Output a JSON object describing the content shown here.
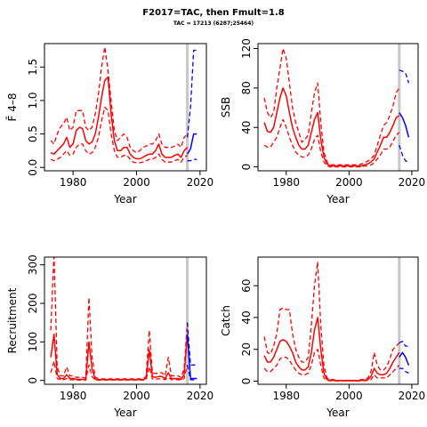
{
  "figure": {
    "title": "F2017=TAC, then Fmult=1.8",
    "subtitle": "TAC = 17213 (6287;25464)"
  },
  "colors": {
    "historical": "#ff0000",
    "forecast": "#0000ff",
    "divider": "#c8c8c8",
    "frame": "#000000"
  },
  "chart_data": [
    {
      "id": "fbar",
      "type": "line",
      "xlabel": "Year",
      "ylabel": "F̄ 4–8",
      "xlim": [
        1971,
        2022
      ],
      "ylim": [
        -0.05,
        1.85
      ],
      "xticks": [
        1980,
        2000,
        2020
      ],
      "yticks": [
        0.0,
        0.5,
        1.0,
        1.5
      ],
      "ytick_labels": [
        "0.0",
        "0.5",
        "1.0",
        "1.5"
      ],
      "divider_year": 2016,
      "historical": {
        "x": [
          1973,
          1974,
          1975,
          1976,
          1977,
          1978,
          1979,
          1980,
          1981,
          1982,
          1983,
          1984,
          1985,
          1986,
          1987,
          1988,
          1989,
          1990,
          1991,
          1992,
          1993,
          1994,
          1995,
          1996,
          1997,
          1998,
          1999,
          2000,
          2001,
          2002,
          2003,
          2004,
          2005,
          2006,
          2007,
          2008,
          2009,
          2010,
          2011,
          2012,
          2013,
          2014,
          2015,
          2016
        ],
        "median": [
          0.22,
          0.2,
          0.25,
          0.3,
          0.35,
          0.45,
          0.3,
          0.35,
          0.55,
          0.6,
          0.58,
          0.4,
          0.35,
          0.38,
          0.5,
          0.75,
          1.05,
          1.3,
          1.35,
          0.8,
          0.4,
          0.25,
          0.25,
          0.3,
          0.3,
          0.2,
          0.15,
          0.13,
          0.13,
          0.15,
          0.18,
          0.2,
          0.2,
          0.25,
          0.35,
          0.2,
          0.15,
          0.15,
          0.15,
          0.18,
          0.2,
          0.15,
          0.25,
          0.3
        ],
        "upper": [
          0.4,
          0.35,
          0.5,
          0.6,
          0.65,
          0.75,
          0.55,
          0.6,
          0.85,
          0.85,
          0.85,
          0.6,
          0.55,
          0.6,
          0.8,
          1.1,
          1.5,
          1.8,
          1.45,
          1.0,
          0.55,
          0.4,
          0.45,
          0.5,
          0.45,
          0.3,
          0.25,
          0.22,
          0.25,
          0.3,
          0.32,
          0.35,
          0.35,
          0.4,
          0.5,
          0.35,
          0.3,
          0.3,
          0.3,
          0.32,
          0.35,
          0.3,
          0.45,
          0.5
        ],
        "lower": [
          0.12,
          0.1,
          0.12,
          0.15,
          0.2,
          0.25,
          0.18,
          0.2,
          0.3,
          0.35,
          0.35,
          0.25,
          0.2,
          0.22,
          0.3,
          0.45,
          0.7,
          0.9,
          0.85,
          0.5,
          0.25,
          0.15,
          0.15,
          0.18,
          0.18,
          0.12,
          0.08,
          0.07,
          0.07,
          0.08,
          0.1,
          0.12,
          0.12,
          0.15,
          0.2,
          0.12,
          0.08,
          0.08,
          0.08,
          0.1,
          0.12,
          0.08,
          0.15,
          0.18
        ]
      },
      "forecast": {
        "x": [
          2016,
          2017,
          2018,
          2019
        ],
        "median": [
          0.2,
          0.28,
          0.5,
          0.5
        ],
        "upper": [
          0.45,
          0.9,
          1.75,
          1.75
        ],
        "lower": [
          0.1,
          0.1,
          0.12,
          0.12
        ]
      }
    },
    {
      "id": "ssb",
      "type": "line",
      "xlabel": "Year",
      "ylabel": "SSB",
      "xlim": [
        1971,
        2022
      ],
      "ylim": [
        -4,
        125
      ],
      "xticks": [
        1980,
        2000,
        2020
      ],
      "yticks": [
        0,
        40,
        80,
        120
      ],
      "ytick_labels": [
        "0",
        "40",
        "80",
        "120"
      ],
      "divider_year": 2016,
      "historical": {
        "x": [
          1973,
          1974,
          1975,
          1976,
          1977,
          1978,
          1979,
          1980,
          1981,
          1982,
          1983,
          1984,
          1985,
          1986,
          1987,
          1988,
          1989,
          1990,
          1991,
          1992,
          1993,
          1994,
          1995,
          1996,
          1997,
          1998,
          1999,
          2000,
          2001,
          2002,
          2003,
          2004,
          2005,
          2006,
          2007,
          2008,
          2009,
          2010,
          2011,
          2012,
          2013,
          2014,
          2015,
          2016
        ],
        "median": [
          45,
          36,
          35,
          40,
          55,
          70,
          80,
          72,
          55,
          40,
          30,
          22,
          18,
          18,
          22,
          35,
          48,
          55,
          28,
          10,
          3,
          1,
          1,
          1,
          1,
          1,
          1,
          1,
          1,
          1,
          1,
          1,
          2,
          3,
          5,
          8,
          15,
          22,
          30,
          30,
          35,
          42,
          50,
          52
        ],
        "upper": [
          70,
          55,
          50,
          55,
          80,
          100,
          120,
          110,
          85,
          60,
          45,
          35,
          25,
          28,
          32,
          55,
          75,
          85,
          45,
          15,
          5,
          2,
          2,
          2,
          2,
          2,
          2,
          2,
          2,
          2,
          2,
          3,
          4,
          6,
          8,
          12,
          22,
          32,
          42,
          45,
          52,
          62,
          75,
          80
        ],
        "lower": [
          22,
          20,
          20,
          25,
          30,
          40,
          48,
          40,
          30,
          22,
          15,
          12,
          10,
          10,
          12,
          18,
          28,
          32,
          15,
          5,
          1,
          0,
          0,
          0,
          0,
          0,
          0,
          0,
          0,
          0,
          0,
          0,
          1,
          1,
          2,
          4,
          8,
          12,
          18,
          18,
          20,
          26,
          32,
          35
        ]
      },
      "forecast": {
        "x": [
          2016,
          2017,
          2018,
          2019
        ],
        "median": [
          55,
          50,
          42,
          30
        ],
        "upper": [
          98,
          97,
          95,
          85
        ],
        "lower": [
          22,
          12,
          6,
          5
        ]
      }
    },
    {
      "id": "recruitment",
      "type": "line",
      "xlabel": "Year",
      "ylabel": "Recruitment",
      "xlim": [
        1971,
        2022
      ],
      "ylim": [
        -10,
        320
      ],
      "xticks": [
        1980,
        2000,
        2020
      ],
      "yticks": [
        0,
        100,
        200,
        300
      ],
      "ytick_labels": [
        "0",
        "100",
        "200",
        "300"
      ],
      "divider_year": 2016,
      "historical": {
        "x": [
          1973,
          1974,
          1975,
          1976,
          1977,
          1978,
          1979,
          1980,
          1981,
          1982,
          1983,
          1984,
          1985,
          1986,
          1987,
          1988,
          1989,
          1990,
          1991,
          1992,
          1993,
          1994,
          1995,
          1996,
          1997,
          1998,
          1999,
          2000,
          2001,
          2002,
          2003,
          2004,
          2005,
          2006,
          2007,
          2008,
          2009,
          2010,
          2011,
          2012,
          2013,
          2014,
          2015,
          2016
        ],
        "median": [
          60,
          120,
          15,
          5,
          5,
          15,
          5,
          5,
          3,
          3,
          3,
          2,
          100,
          30,
          3,
          2,
          2,
          2,
          2,
          2,
          2,
          2,
          2,
          2,
          2,
          2,
          2,
          2,
          2,
          2,
          5,
          80,
          10,
          8,
          10,
          10,
          5,
          20,
          5,
          5,
          5,
          3,
          15,
          120
        ],
        "upper": [
          130,
          330,
          35,
          12,
          12,
          35,
          12,
          12,
          8,
          8,
          8,
          6,
          215,
          60,
          8,
          5,
          4,
          4,
          4,
          4,
          4,
          4,
          4,
          4,
          4,
          4,
          4,
          4,
          4,
          4,
          10,
          130,
          20,
          18,
          20,
          20,
          12,
          60,
          12,
          12,
          12,
          8,
          30,
          150
        ],
        "lower": [
          20,
          50,
          5,
          2,
          2,
          5,
          2,
          2,
          1,
          1,
          1,
          1,
          40,
          10,
          1,
          1,
          1,
          1,
          1,
          1,
          1,
          1,
          1,
          1,
          1,
          1,
          1,
          1,
          1,
          1,
          2,
          35,
          4,
          3,
          4,
          4,
          2,
          8,
          2,
          2,
          2,
          1,
          5,
          40
        ]
      },
      "forecast": {
        "x": [
          2016,
          2017,
          2018,
          2019
        ],
        "median": [
          120,
          5,
          5,
          5
        ],
        "upper": [
          150,
          40,
          40,
          40
        ],
        "lower": [
          40,
          2,
          2,
          2
        ]
      }
    },
    {
      "id": "catch",
      "type": "line",
      "xlabel": "Year",
      "ylabel": "Catch",
      "xlim": [
        1971,
        2022
      ],
      "ylim": [
        -2,
        78
      ],
      "xticks": [
        1980,
        2000,
        2020
      ],
      "yticks": [
        0,
        20,
        40,
        60
      ],
      "ytick_labels": [
        "0",
        "20",
        "40",
        "60"
      ],
      "divider_year": 2016,
      "historical": {
        "x": [
          1973,
          1974,
          1975,
          1976,
          1977,
          1978,
          1979,
          1980,
          1981,
          1982,
          1983,
          1984,
          1985,
          1986,
          1987,
          1988,
          1989,
          1990,
          1991,
          1992,
          1993,
          1994,
          1995,
          1996,
          1997,
          1998,
          1999,
          2000,
          2001,
          2002,
          2003,
          2004,
          2005,
          2006,
          2007,
          2008,
          2009,
          2010,
          2011,
          2012,
          2013,
          2014,
          2015,
          2016
        ],
        "median": [
          16,
          12,
          12,
          15,
          20,
          25,
          26,
          25,
          22,
          18,
          12,
          9,
          7,
          7,
          9,
          18,
          32,
          40,
          20,
          5,
          1,
          0.5,
          0.5,
          0.3,
          0.3,
          0.3,
          0.3,
          0.3,
          0.3,
          0.3,
          0.3,
          0.5,
          0.5,
          1,
          3,
          8,
          5,
          4,
          4,
          5,
          8,
          12,
          15,
          18
        ],
        "upper": [
          28,
          18,
          17,
          22,
          30,
          45,
          46,
          45,
          45,
          30,
          20,
          15,
          12,
          12,
          15,
          35,
          60,
          75,
          35,
          10,
          2,
          1,
          1,
          0.5,
          0.5,
          0.5,
          0.5,
          0.5,
          0.5,
          0.5,
          0.5,
          1,
          1,
          2,
          6,
          18,
          10,
          7,
          7,
          9,
          14,
          20,
          22,
          24
        ],
        "lower": [
          8,
          6,
          6,
          8,
          10,
          14,
          15,
          15,
          13,
          10,
          7,
          5,
          4,
          4,
          5,
          10,
          18,
          20,
          10,
          2,
          0.5,
          0.2,
          0.2,
          0.1,
          0.1,
          0.1,
          0.1,
          0.1,
          0.1,
          0.1,
          0.1,
          0.2,
          0.2,
          0.5,
          1,
          4,
          2,
          2,
          2,
          2,
          4,
          6,
          8,
          10
        ]
      },
      "forecast": {
        "x": [
          2016,
          2017,
          2018,
          2019
        ],
        "median": [
          15,
          18,
          15,
          10
        ],
        "upper": [
          24,
          25,
          22,
          22
        ],
        "lower": [
          8,
          8,
          6,
          5
        ]
      }
    }
  ]
}
